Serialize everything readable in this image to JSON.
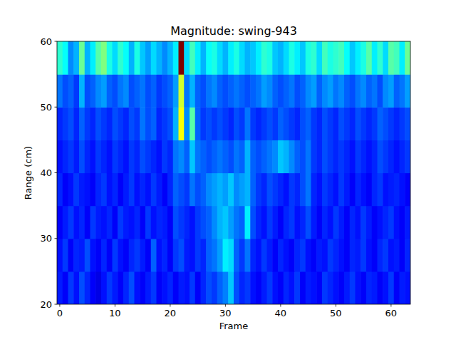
{
  "chart_data": {
    "type": "heatmap",
    "title": "Magnitude: swing-943",
    "x_label": "Frame",
    "y_label": "Range (cm)",
    "x": [
      0,
      1,
      2,
      3,
      4,
      5,
      6,
      7,
      8,
      9,
      10,
      11,
      12,
      13,
      14,
      15,
      16,
      17,
      18,
      19,
      20,
      21,
      22,
      23,
      24,
      25,
      26,
      27,
      28,
      29,
      30,
      31,
      32,
      33,
      34,
      35,
      36,
      37,
      38,
      39,
      40,
      41,
      42,
      43,
      44,
      45,
      46,
      47,
      48,
      49,
      50,
      51,
      52,
      53,
      54,
      55,
      56,
      57,
      58,
      59,
      60,
      61,
      62,
      63
    ],
    "y_bins": [
      20,
      25,
      30,
      35,
      40,
      45,
      50,
      55,
      60
    ],
    "xlim": [
      -0.5,
      63.5
    ],
    "ylim": [
      20,
      60
    ],
    "xticks": [
      0,
      10,
      20,
      30,
      40,
      50,
      60
    ],
    "yticks": [
      20,
      30,
      40,
      50,
      60
    ],
    "color_range": [
      0,
      1
    ],
    "cells": [
      [
        0.15,
        0.12,
        0.18,
        0.14,
        0.2,
        0.16,
        0.12,
        0.1,
        0.14,
        0.18,
        0.15,
        0.12,
        0.16,
        0.2,
        0.14,
        0.12,
        0.15,
        0.18,
        0.12,
        0.14,
        0.16,
        0.12,
        0.15,
        0.14,
        0.18,
        0.12,
        0.16,
        0.2,
        0.18,
        0.22,
        0.25,
        0.32,
        0.2,
        0.16,
        0.18,
        0.14,
        0.12,
        0.15,
        0.18,
        0.14,
        0.12,
        0.16,
        0.14,
        0.18,
        0.12,
        0.15,
        0.14,
        0.12,
        0.18,
        0.16,
        0.14,
        0.12,
        0.15,
        0.18,
        0.14,
        0.12,
        0.16,
        0.15,
        0.12,
        0.14,
        0.18,
        0.12,
        0.15,
        0.14
      ],
      [
        0.14,
        0.18,
        0.12,
        0.16,
        0.15,
        0.2,
        0.14,
        0.12,
        0.16,
        0.12,
        0.18,
        0.14,
        0.12,
        0.16,
        0.18,
        0.15,
        0.12,
        0.22,
        0.14,
        0.16,
        0.12,
        0.18,
        0.2,
        0.15,
        0.14,
        0.18,
        0.16,
        0.22,
        0.24,
        0.28,
        0.36,
        0.34,
        0.22,
        0.18,
        0.24,
        0.16,
        0.14,
        0.18,
        0.15,
        0.12,
        0.16,
        0.14,
        0.12,
        0.16,
        0.18,
        0.14,
        0.12,
        0.15,
        0.14,
        0.18,
        0.16,
        0.14,
        0.12,
        0.16,
        0.15,
        0.18,
        0.14,
        0.12,
        0.16,
        0.18,
        0.14,
        0.15,
        0.12,
        0.16
      ],
      [
        0.12,
        0.15,
        0.18,
        0.14,
        0.16,
        0.12,
        0.18,
        0.15,
        0.14,
        0.16,
        0.12,
        0.18,
        0.15,
        0.14,
        0.16,
        0.12,
        0.18,
        0.14,
        0.16,
        0.15,
        0.12,
        0.2,
        0.18,
        0.16,
        0.14,
        0.18,
        0.2,
        0.22,
        0.26,
        0.3,
        0.32,
        0.28,
        0.24,
        0.22,
        0.36,
        0.2,
        0.16,
        0.14,
        0.18,
        0.15,
        0.12,
        0.16,
        0.18,
        0.14,
        0.16,
        0.2,
        0.15,
        0.12,
        0.16,
        0.14,
        0.18,
        0.15,
        0.12,
        0.16,
        0.14,
        0.18,
        0.15,
        0.12,
        0.14,
        0.16,
        0.18,
        0.14,
        0.12,
        0.15
      ],
      [
        0.16,
        0.12,
        0.14,
        0.18,
        0.15,
        0.14,
        0.12,
        0.16,
        0.18,
        0.14,
        0.16,
        0.12,
        0.15,
        0.18,
        0.14,
        0.16,
        0.14,
        0.18,
        0.15,
        0.12,
        0.16,
        0.22,
        0.2,
        0.18,
        0.24,
        0.2,
        0.22,
        0.26,
        0.28,
        0.3,
        0.28,
        0.32,
        0.26,
        0.28,
        0.3,
        0.22,
        0.18,
        0.16,
        0.2,
        0.18,
        0.16,
        0.14,
        0.18,
        0.16,
        0.2,
        0.24,
        0.16,
        0.14,
        0.18,
        0.16,
        0.14,
        0.18,
        0.15,
        0.12,
        0.16,
        0.14,
        0.12,
        0.16,
        0.18,
        0.14,
        0.15,
        0.16,
        0.14,
        0.12
      ],
      [
        0.14,
        0.16,
        0.18,
        0.15,
        0.2,
        0.16,
        0.14,
        0.18,
        0.16,
        0.14,
        0.18,
        0.16,
        0.14,
        0.18,
        0.16,
        0.2,
        0.18,
        0.16,
        0.14,
        0.18,
        0.16,
        0.24,
        0.26,
        0.22,
        0.32,
        0.24,
        0.22,
        0.2,
        0.22,
        0.24,
        0.22,
        0.2,
        0.24,
        0.22,
        0.3,
        0.22,
        0.2,
        0.22,
        0.24,
        0.26,
        0.32,
        0.3,
        0.26,
        0.22,
        0.2,
        0.24,
        0.18,
        0.16,
        0.2,
        0.18,
        0.16,
        0.18,
        0.16,
        0.14,
        0.18,
        0.16,
        0.14,
        0.16,
        0.2,
        0.18,
        0.16,
        0.14,
        0.16,
        0.18
      ],
      [
        0.16,
        0.18,
        0.2,
        0.16,
        0.22,
        0.18,
        0.16,
        0.2,
        0.18,
        0.16,
        0.2,
        0.18,
        0.16,
        0.2,
        0.18,
        0.24,
        0.2,
        0.22,
        0.16,
        0.18,
        0.2,
        0.3,
        0.62,
        0.26,
        0.46,
        0.22,
        0.18,
        0.2,
        0.18,
        0.2,
        0.18,
        0.16,
        0.2,
        0.18,
        0.24,
        0.18,
        0.16,
        0.18,
        0.2,
        0.18,
        0.22,
        0.2,
        0.18,
        0.16,
        0.2,
        0.22,
        0.18,
        0.16,
        0.2,
        0.18,
        0.16,
        0.2,
        0.18,
        0.16,
        0.2,
        0.18,
        0.16,
        0.18,
        0.22,
        0.2,
        0.18,
        0.16,
        0.18,
        0.2
      ],
      [
        0.24,
        0.2,
        0.22,
        0.18,
        0.3,
        0.2,
        0.22,
        0.26,
        0.28,
        0.22,
        0.2,
        0.24,
        0.26,
        0.2,
        0.22,
        0.24,
        0.2,
        0.22,
        0.18,
        0.2,
        0.22,
        0.28,
        0.58,
        0.24,
        0.3,
        0.22,
        0.2,
        0.24,
        0.26,
        0.22,
        0.2,
        0.22,
        0.24,
        0.22,
        0.2,
        0.22,
        0.24,
        0.28,
        0.26,
        0.22,
        0.2,
        0.22,
        0.24,
        0.2,
        0.22,
        0.26,
        0.28,
        0.22,
        0.26,
        0.28,
        0.24,
        0.26,
        0.22,
        0.2,
        0.24,
        0.26,
        0.22,
        0.24,
        0.2,
        0.26,
        0.28,
        0.22,
        0.24,
        0.28
      ],
      [
        0.42,
        0.38,
        0.26,
        0.3,
        0.48,
        0.3,
        0.36,
        0.46,
        0.5,
        0.4,
        0.34,
        0.42,
        0.38,
        0.3,
        0.4,
        0.32,
        0.28,
        0.34,
        0.3,
        0.26,
        0.3,
        0.36,
        1.0,
        0.34,
        0.44,
        0.36,
        0.3,
        0.38,
        0.4,
        0.34,
        0.3,
        0.36,
        0.4,
        0.34,
        0.3,
        0.32,
        0.36,
        0.42,
        0.4,
        0.32,
        0.3,
        0.34,
        0.4,
        0.36,
        0.32,
        0.4,
        0.42,
        0.34,
        0.44,
        0.4,
        0.42,
        0.44,
        0.38,
        0.32,
        0.36,
        0.4,
        0.46,
        0.36,
        0.42,
        0.34,
        0.46,
        0.44,
        0.36,
        0.48
      ]
    ]
  }
}
